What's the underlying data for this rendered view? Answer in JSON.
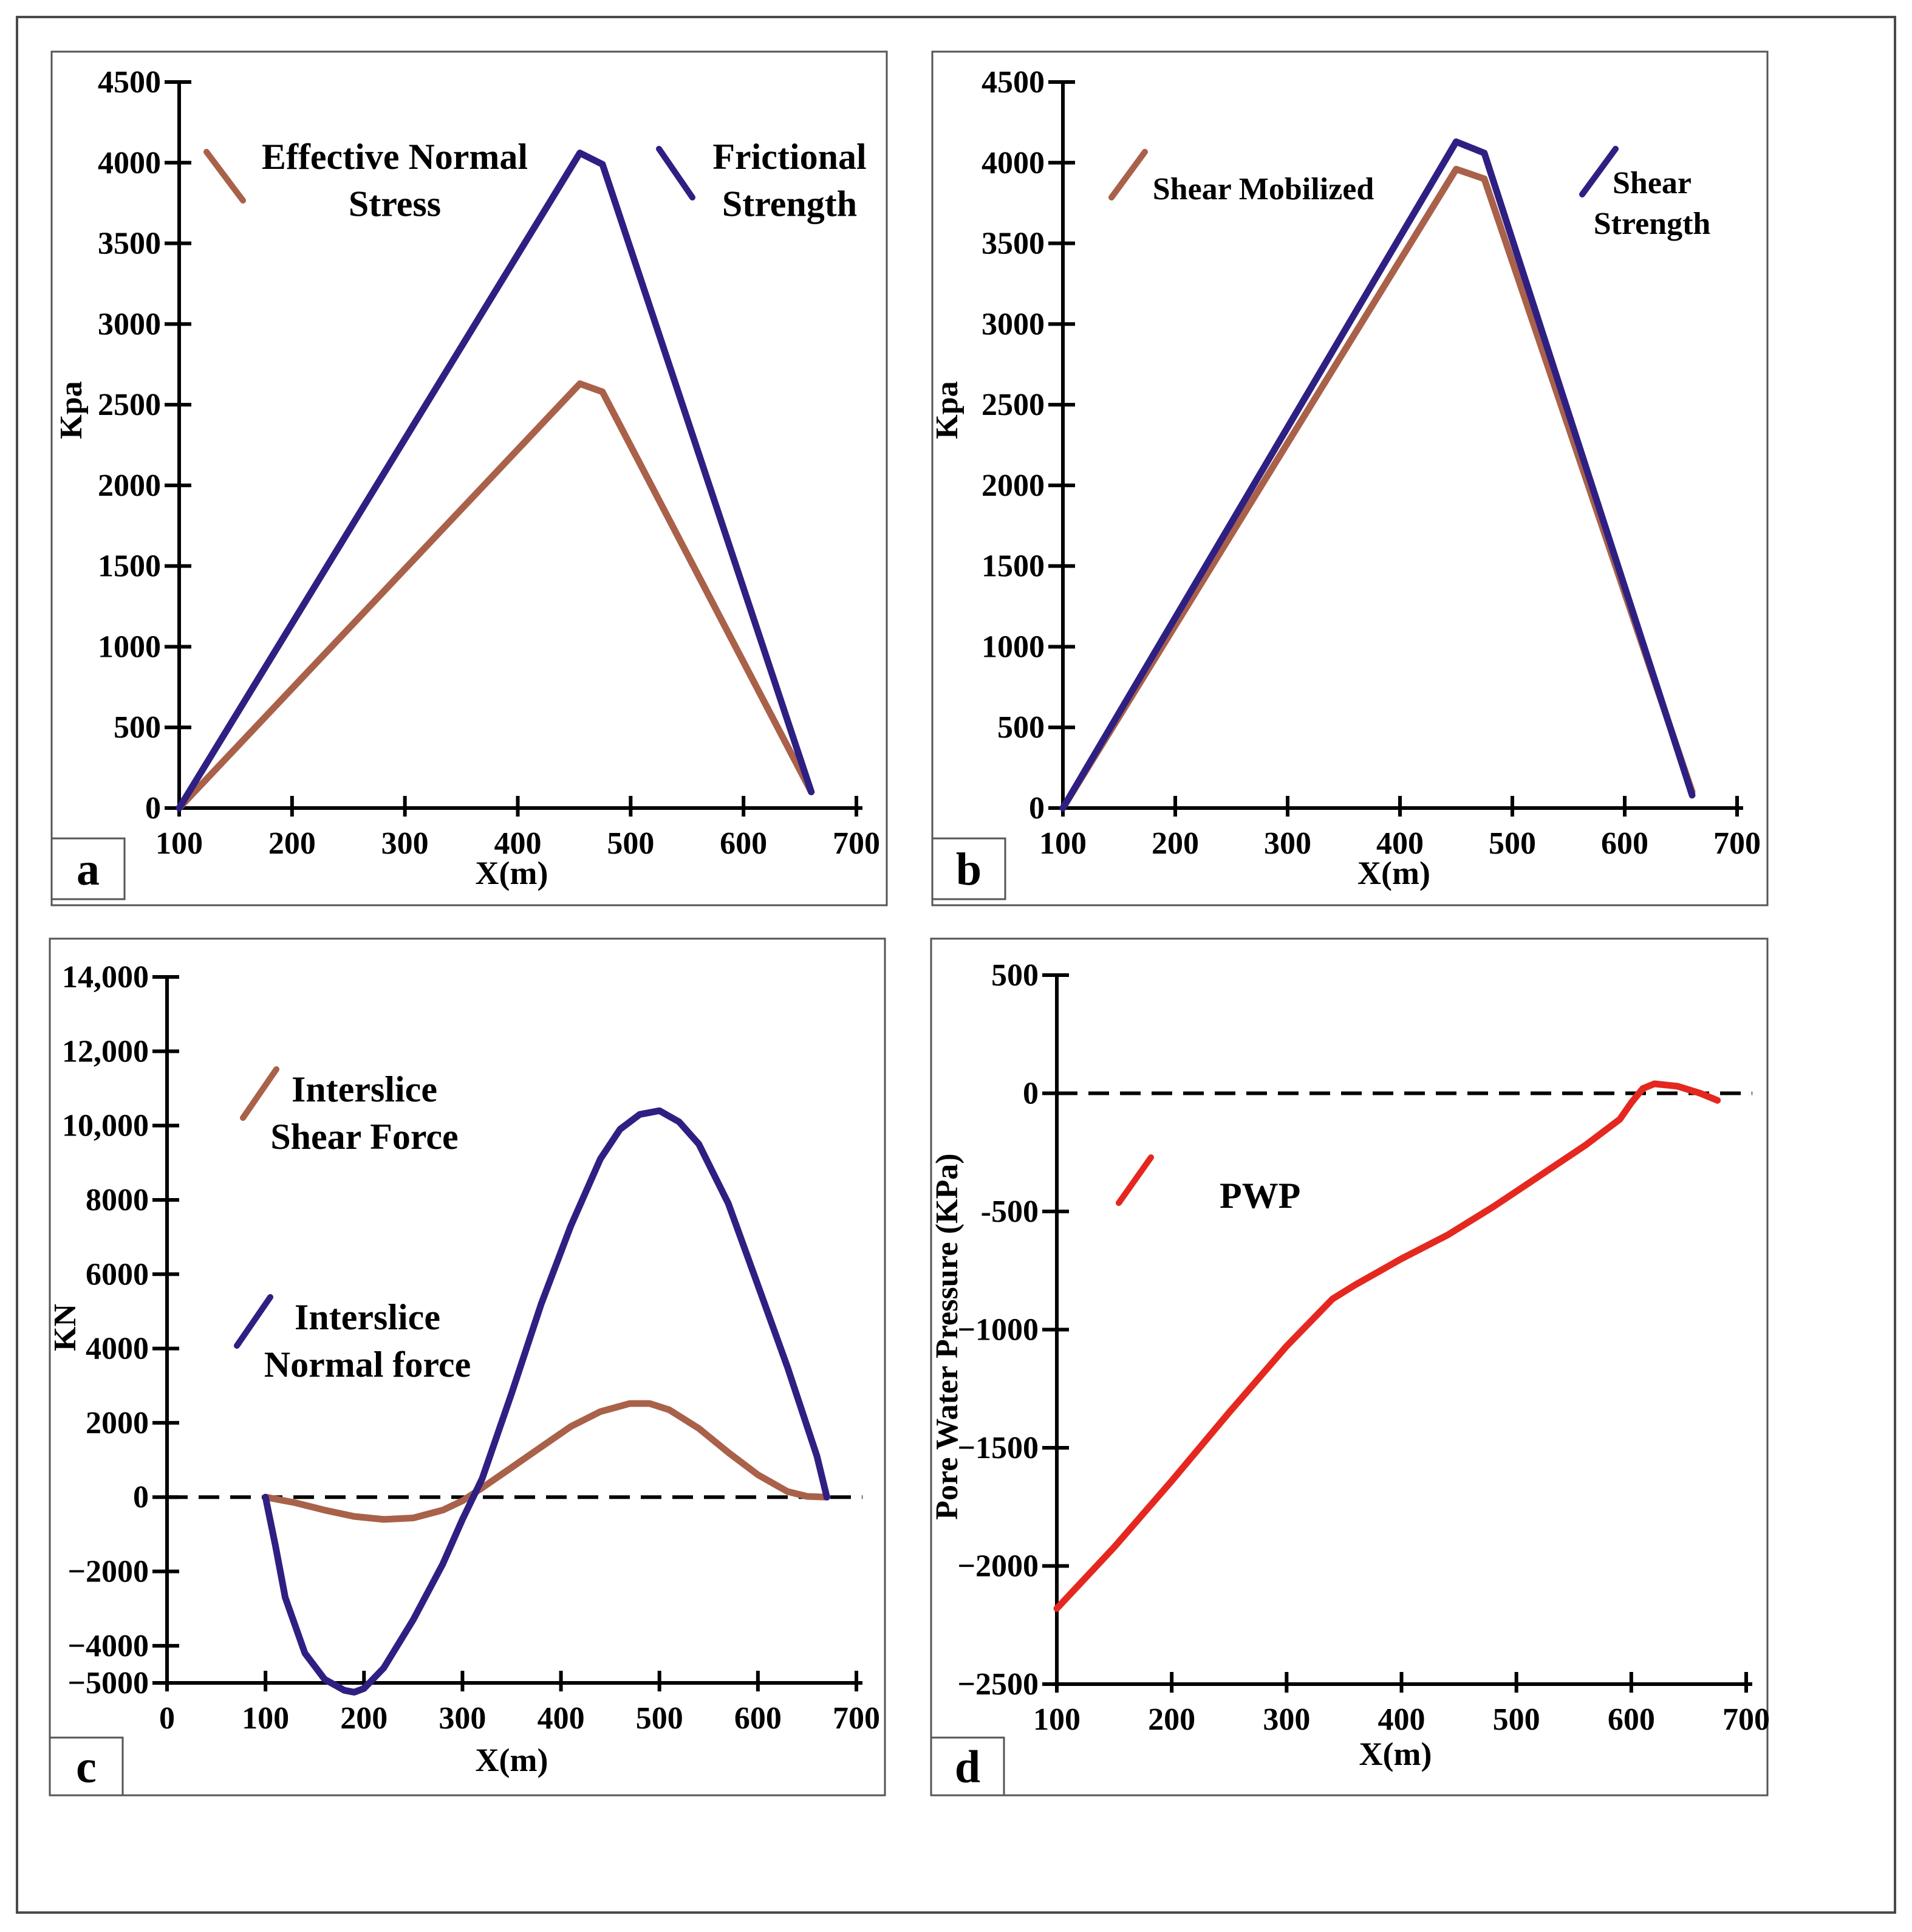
{
  "chart_data": [
    {
      "type": "line",
      "panel_label": "a",
      "title": "",
      "xlabel": "X(m)",
      "ylabel": "Kpa",
      "xlim": [
        100,
        700
      ],
      "ylim": [
        0,
        4500
      ],
      "xticks": [
        "100",
        "200",
        "300",
        "400",
        "500",
        "600",
        "700"
      ],
      "yticks": [
        "0",
        "500",
        "1000",
        "1500",
        "2000",
        "2500",
        "3000",
        "3500",
        "4000",
        "4500"
      ],
      "zero_line": false,
      "legend": [
        {
          "series": 0,
          "lines": [
            "Effective Normal",
            "Stress"
          ]
        },
        {
          "series": 1,
          "lines": [
            "Frictional",
            "Strength"
          ]
        }
      ],
      "series": [
        {
          "name": "Effective Normal Stress",
          "color": "#a9614a",
          "x": [
            100,
            455,
            475,
            660
          ],
          "y": [
            0,
            2630,
            2580,
            100
          ]
        },
        {
          "name": "Frictional Strength",
          "color": "#2e2083",
          "x": [
            100,
            455,
            475,
            660
          ],
          "y": [
            0,
            4060,
            3990,
            100
          ]
        }
      ]
    },
    {
      "type": "line",
      "panel_label": "b",
      "title": "",
      "xlabel": "X(m)",
      "ylabel": "Kpa",
      "xlim": [
        100,
        700
      ],
      "ylim": [
        0,
        4500
      ],
      "xticks": [
        "100",
        "200",
        "300",
        "400",
        "500",
        "600",
        "700"
      ],
      "yticks": [
        "0",
        "500",
        "1000",
        "1500",
        "2000",
        "2500",
        "3000",
        "3500",
        "4000",
        "4500"
      ],
      "zero_line": false,
      "legend": [
        {
          "series": 0,
          "lines": [
            "Shear Mobilized"
          ]
        },
        {
          "series": 1,
          "lines": [
            "Shear",
            "Strength"
          ]
        }
      ],
      "series": [
        {
          "name": "Shear Mobilized",
          "color": "#a9614a",
          "x": [
            100,
            450,
            475,
            660
          ],
          "y": [
            0,
            3960,
            3900,
            100
          ]
        },
        {
          "name": "Shear Strength",
          "color": "#2e2083",
          "x": [
            100,
            450,
            475,
            660
          ],
          "y": [
            0,
            4130,
            4060,
            80
          ]
        }
      ]
    },
    {
      "type": "line",
      "panel_label": "c",
      "title": "",
      "xlabel": "X(m)",
      "ylabel": "KN",
      "xlim": [
        0,
        700
      ],
      "ylim": [
        -5000,
        14000
      ],
      "xticks": [
        "0",
        "100",
        "200",
        "300",
        "400",
        "500",
        "600",
        "700"
      ],
      "yticks": [
        "−5000",
        "−4000",
        "−2000",
        "0",
        "2000",
        "4000",
        "6000",
        "8000",
        "10,000",
        "12,000",
        "14,000"
      ],
      "ytick_values": [
        -5000,
        -4000,
        -2000,
        0,
        2000,
        4000,
        6000,
        8000,
        10000,
        12000,
        14000
      ],
      "zero_line": true,
      "legend": [
        {
          "series": 0,
          "lines": [
            "Interslice",
            "Shear Force"
          ]
        },
        {
          "series": 1,
          "lines": [
            "Interslice",
            "Normal force"
          ]
        }
      ],
      "series": [
        {
          "name": "Interslice Shear Force",
          "color": "#a9614a",
          "x": [
            100,
            130,
            160,
            190,
            220,
            250,
            280,
            300,
            320,
            350,
            380,
            410,
            440,
            470,
            490,
            510,
            540,
            570,
            600,
            630,
            650,
            670
          ],
          "y": [
            0,
            -150,
            -350,
            -520,
            -600,
            -560,
            -350,
            -100,
            250,
            800,
            1350,
            1900,
            2300,
            2520,
            2520,
            2350,
            1850,
            1200,
            600,
            150,
            20,
            0
          ]
        },
        {
          "name": "Interslice Normal force",
          "color": "#2e2083",
          "x": [
            100,
            110,
            120,
            140,
            160,
            180,
            190,
            200,
            220,
            250,
            280,
            300,
            320,
            350,
            380,
            410,
            440,
            460,
            480,
            500,
            520,
            540,
            570,
            600,
            630,
            660,
            670
          ],
          "y": [
            0,
            -1300,
            -2700,
            -4200,
            -4900,
            -5200,
            -5250,
            -5150,
            -4600,
            -3300,
            -1800,
            -600,
            500,
            2800,
            5200,
            7300,
            9100,
            9900,
            10300,
            10400,
            10100,
            9500,
            7900,
            5700,
            3500,
            1100,
            0
          ]
        }
      ]
    },
    {
      "type": "line",
      "panel_label": "d",
      "title": "",
      "xlabel": "X(m)",
      "ylabel": "Pore Water Pressure (KPa)",
      "xlim": [
        100,
        700
      ],
      "ylim": [
        -2500,
        500
      ],
      "xticks": [
        "100",
        "200",
        "300",
        "400",
        "500",
        "600",
        "700"
      ],
      "yticks": [
        "−2500",
        "−2000",
        "−1500",
        "−1000",
        "-500",
        "0",
        "500"
      ],
      "ytick_values": [
        -2500,
        -2000,
        -1500,
        -1000,
        -500,
        0,
        500
      ],
      "zero_line": true,
      "legend": [
        {
          "series": 0,
          "lines": [
            "PWP"
          ]
        }
      ],
      "series": [
        {
          "name": "PWP",
          "color": "#e5281f",
          "x": [
            100,
            150,
            200,
            250,
            300,
            340,
            360,
            400,
            440,
            480,
            520,
            560,
            590,
            600,
            610,
            620,
            640,
            660,
            675
          ],
          "y": [
            -2180,
            -1920,
            -1640,
            -1350,
            -1070,
            -870,
            -810,
            -700,
            -600,
            -480,
            -350,
            -220,
            -110,
            -40,
            20,
            40,
            30,
            0,
            -30
          ]
        }
      ]
    }
  ]
}
